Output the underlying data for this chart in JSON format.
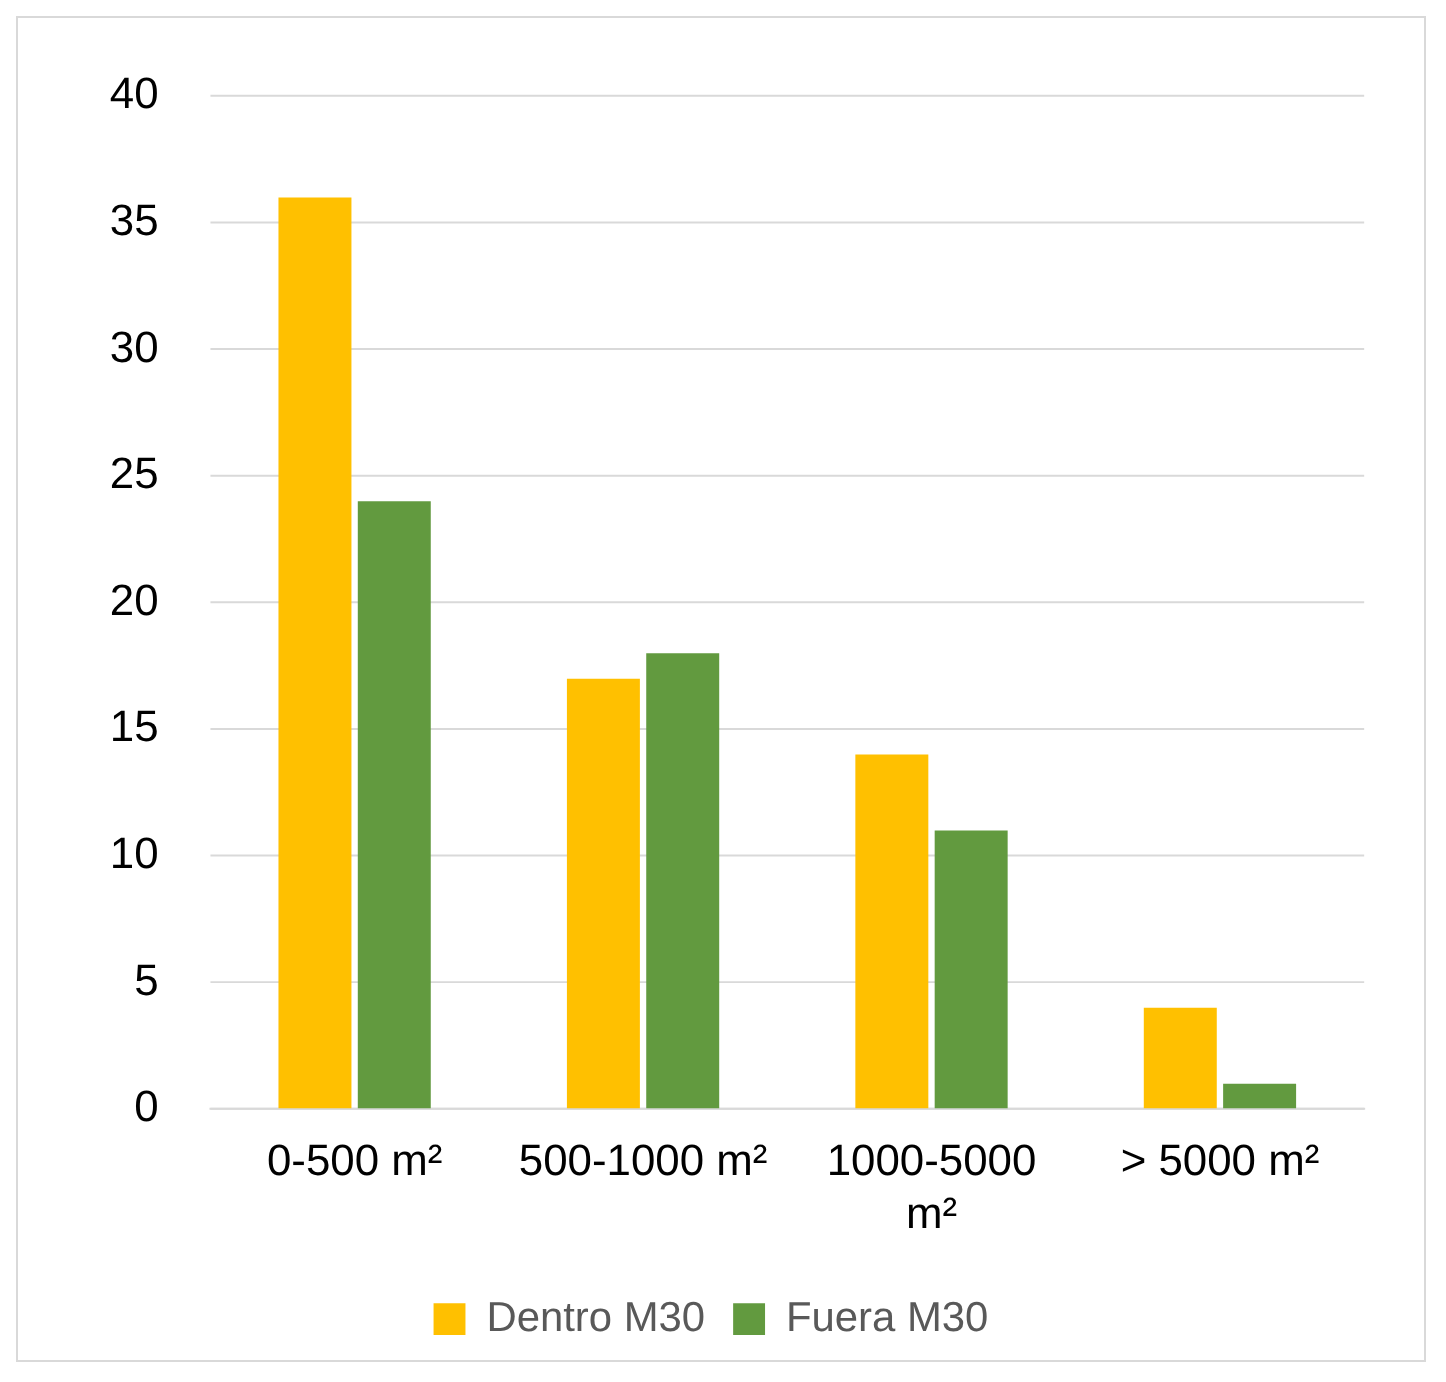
{
  "chart_data": {
    "type": "bar",
    "categories": [
      "0-500 m²",
      "500-1000 m²",
      "1000-5000 m²",
      "> 5000 m²"
    ],
    "series": [
      {
        "name": "Dentro M30",
        "color": "#ffc000",
        "values": [
          36,
          17,
          14,
          4
        ]
      },
      {
        "name": "Fuera M30",
        "color": "#629a3f",
        "values": [
          24,
          18,
          11,
          1
        ]
      }
    ],
    "ylim": [
      0,
      40
    ],
    "yticks": [
      0,
      5,
      10,
      15,
      20,
      25,
      30,
      35,
      40
    ],
    "grid": "y",
    "legend": "bottom"
  }
}
